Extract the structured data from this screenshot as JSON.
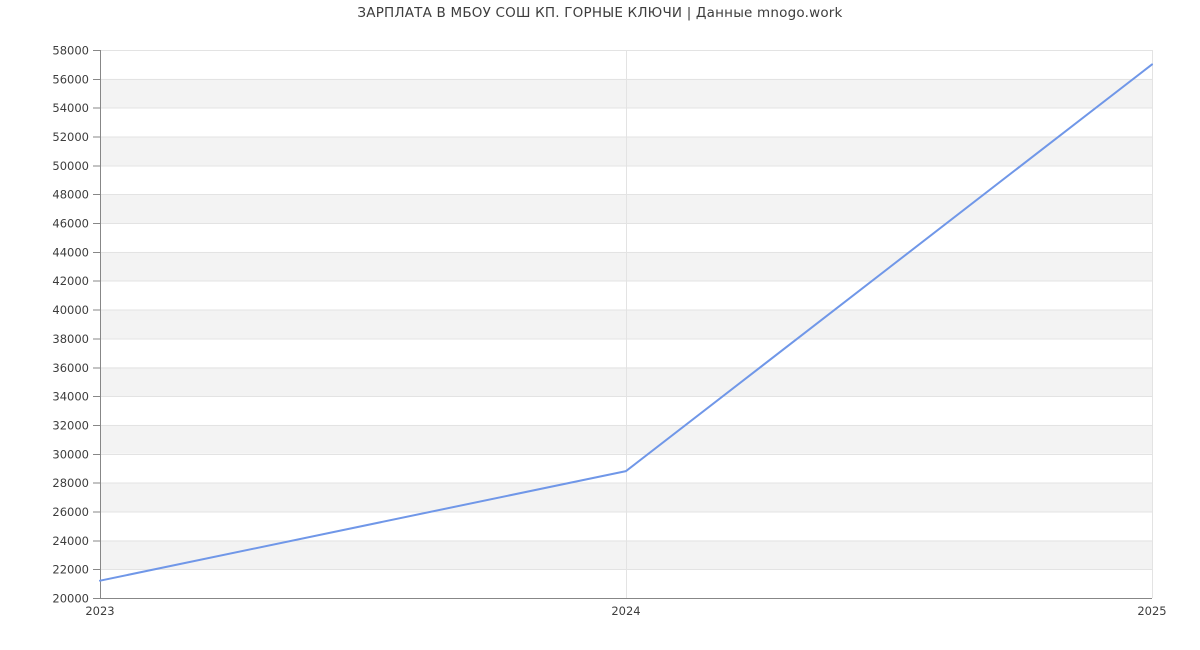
{
  "title": "ЗАРПЛАТА В МБОУ СОШ КП. ГОРНЫЕ КЛЮЧИ | Данные mnogo.work",
  "chart_data": {
    "type": "line",
    "title": "ЗАРПЛАТА В МБОУ СОШ КП. ГОРНЫЕ КЛЮЧИ | Данные mnogo.work",
    "x": [
      "2023",
      "2024",
      "2025"
    ],
    "series": [
      {
        "name": "ЗАРПЛАТА",
        "values": [
          21200,
          28800,
          57000
        ]
      }
    ],
    "ylim": [
      20000,
      58000
    ],
    "ytick_step": 2000,
    "xlabel": "",
    "ylabel": "",
    "grid": true,
    "legend_position": "none",
    "band_fill": "alternating",
    "colors": {
      "line": "#7097e8",
      "band": "#f3f3f3",
      "gridline": "#e3e3e3",
      "axis": "#878787",
      "tick": "#878787",
      "text": "#3d3d3d",
      "background": "#ffffff"
    }
  }
}
